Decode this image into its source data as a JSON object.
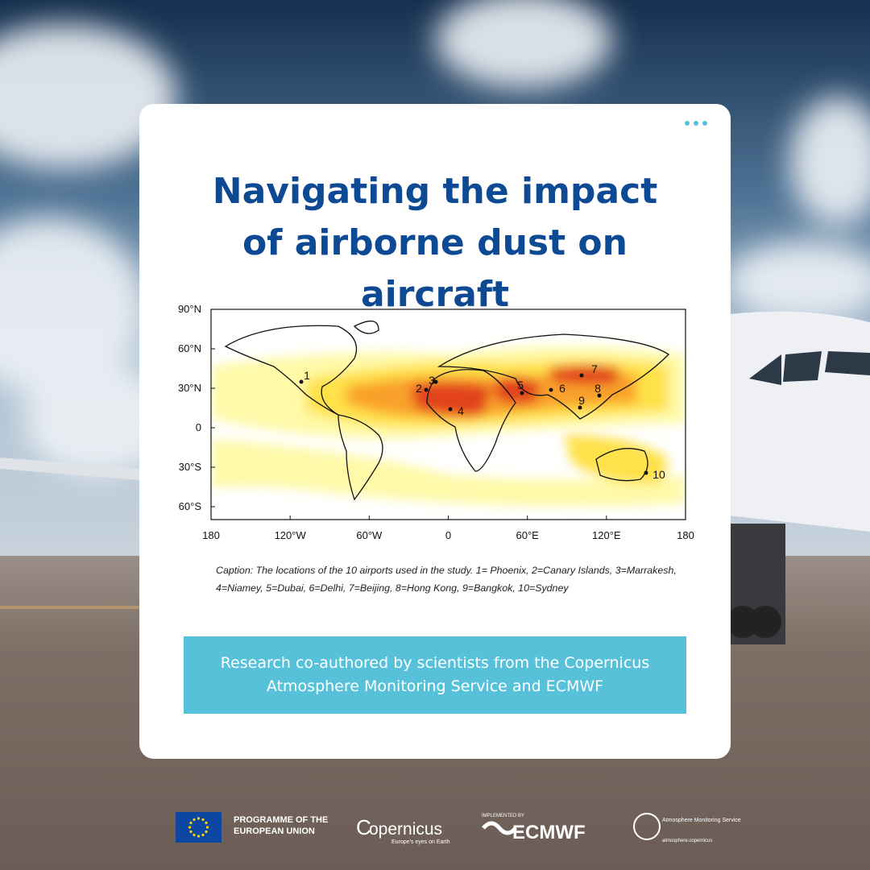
{
  "header": {
    "title": "Navigating the impact of airborne dust on aircraft"
  },
  "map": {
    "lat_labels": [
      "90°N",
      "60°N",
      "30°N",
      "0",
      "30°S",
      "60°S"
    ],
    "lon_labels": [
      "180",
      "120°W",
      "60°W",
      "0",
      "60°E",
      "120°E",
      "180"
    ],
    "airports": [
      "1",
      "2",
      "3",
      "4",
      "5",
      "6",
      "7",
      "8",
      "9",
      "10"
    ],
    "caption": "Caption: The locations of the 10 airports used in the study. 1= Phoenix, 2=Canary Islands, 3=Marrakesh, 4=Niamey, 5=Dubai, 6=Delhi, 7=Beijing, 8=Hong Kong, 9=Bangkok, 10=Sydney"
  },
  "banner": {
    "text": "Research co-authored by scientists from the Copernicus Atmosphere Monitoring Service and ECMWF"
  },
  "footer": {
    "programme": "PROGRAMME OF THE EUROPEAN UNION",
    "copernicus": "opernicus",
    "copernicus_tagline": "Europe's eyes on Earth",
    "implemented_by": "IMPLEMENTED BY",
    "ecmwf": "ECMWF",
    "cams": "Atmosphere Monitoring Service",
    "cams_url": "atmosphere.copernicus"
  }
}
